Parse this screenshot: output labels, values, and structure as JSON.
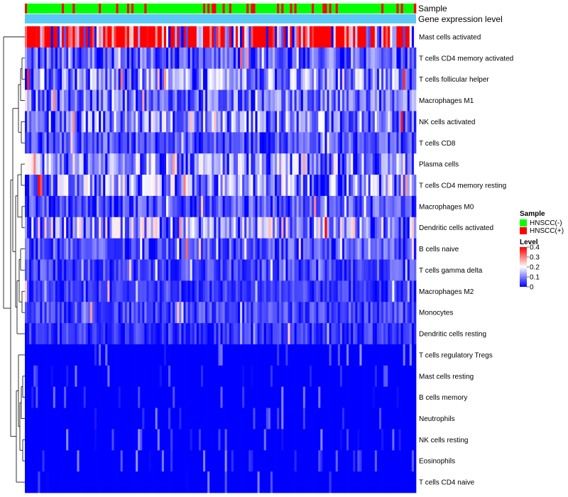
{
  "chart_data": {
    "type": "heatmap",
    "column_annotations": [
      {
        "name": "Sample",
        "type": "categorical"
      },
      {
        "name": "Gene expression level",
        "type": "constant",
        "color": "#5bc8f5"
      }
    ],
    "rows": [
      "Mast cells activated",
      "T cells CD4 memory activated",
      "T cells follicular helper",
      "Macrophages M1",
      "NK cells activated",
      "T cells CD8",
      "Plasma cells",
      "T cells CD4 memory resting",
      "Macrophages M0",
      "Dendritic cells activated",
      "B cells naive",
      "T cells gamma delta",
      "Macrophages M2",
      "Monocytes",
      "Dendritic cells resting",
      "T cells regulatory  Tregs",
      "Mast cells resting",
      "B cells memory",
      "Neutrophils",
      "NK cells resting",
      "Eosinophils",
      "T cells CD4 naive"
    ],
    "row_mean_level": [
      0.36,
      0.07,
      0.1,
      0.08,
      0.1,
      0.06,
      0.11,
      0.11,
      0.06,
      0.12,
      0.06,
      0.05,
      0.04,
      0.05,
      0.04,
      0.02,
      0.01,
      0.01,
      0.02,
      0.005,
      0.005,
      0.02
    ],
    "n_samples": 180,
    "sample_group_fraction_positive": 0.2,
    "sample_legend": {
      "title": "Sample",
      "entries": [
        {
          "label": "HNSCC(-)",
          "color": "#00ff00"
        },
        {
          "label": "HNSCC(+)",
          "color": "#ff0000"
        }
      ]
    },
    "level_legend": {
      "title": "Level",
      "ticks": [
        "0.4",
        "0.3",
        "0.2",
        "0.1",
        "0"
      ],
      "tick_values": [
        0.4,
        0.3,
        0.2,
        0.1,
        0
      ],
      "range": [
        0,
        0.4
      ]
    },
    "colors": {
      "low": "#0000ff",
      "mid": "#ffffff",
      "high": "#ff0000"
    },
    "dendrogram": {
      "side": "left",
      "clustered": "rows"
    }
  }
}
